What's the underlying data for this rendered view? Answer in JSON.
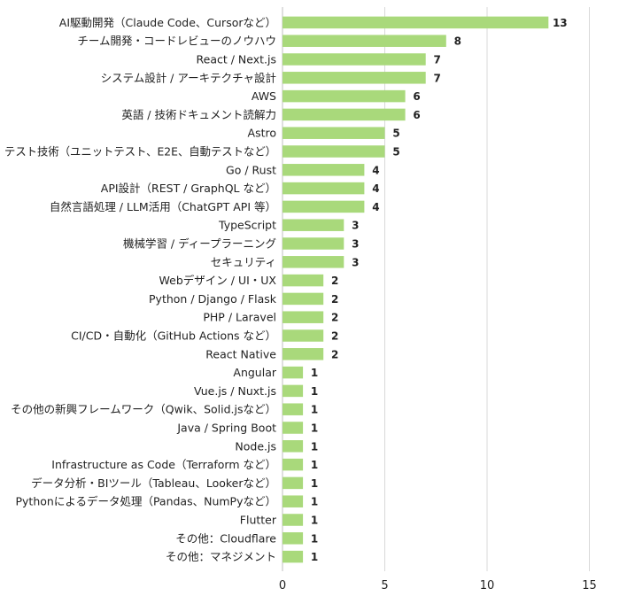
{
  "chart_data": {
    "type": "bar",
    "orientation": "horizontal",
    "categories": [
      "AI駆動開発（Claude Code、Cursorなど）",
      "チーム開発・コードレビューのノウハウ",
      "React / Next.js",
      "システム設計 / アーキテクチャ設計",
      "AWS",
      "英語 / 技術ドキュメント読解力",
      "Astro",
      "テスト技術（ユニットテスト、E2E、自動テストなど）",
      "Go / Rust",
      "API設計（REST / GraphQL など）",
      "自然言語処理 / LLM活用（ChatGPT API 等）",
      "TypeScript",
      "機械学習 / ディープラーニング",
      "セキュリティ",
      "Webデザイン / UI・UX",
      "Python / Django / Flask",
      "PHP / Laravel",
      "CI/CD・自動化（GitHub Actions など）",
      "React Native",
      "Angular",
      "Vue.js / Nuxt.js",
      "その他の新興フレームワーク（Qwik、Solid.jsなど）",
      "Java / Spring Boot",
      "Node.js",
      "Infrastructure as Code（Terraform など）",
      "データ分析・BIツール（Tableau、Lookerなど）",
      "Pythonによるデータ処理（Pandas、NumPyなど）",
      "Flutter",
      "その他：Cloudflare",
      "その他：マネジメント"
    ],
    "values": [
      13,
      8,
      7,
      7,
      6,
      6,
      5,
      5,
      4,
      4,
      4,
      3,
      3,
      3,
      2,
      2,
      2,
      2,
      2,
      1,
      1,
      1,
      1,
      1,
      1,
      1,
      1,
      1,
      1,
      1
    ],
    "xlim": [
      0,
      15
    ],
    "xticks": [
      "0",
      "5",
      "10",
      "15"
    ],
    "grid": true,
    "data_labels": true,
    "bar_color": "#a9d97b"
  }
}
